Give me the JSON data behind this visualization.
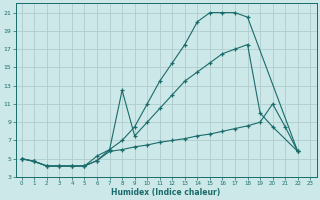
{
  "xlabel": "Humidex (Indice chaleur)",
  "bg_color": "#cde8e8",
  "grid_color": "#b8d8d8",
  "line_color": "#1a6b6b",
  "xlim": [
    -0.5,
    23.5
  ],
  "ylim": [
    3,
    22
  ],
  "xticks": [
    0,
    1,
    2,
    3,
    4,
    5,
    6,
    7,
    8,
    9,
    10,
    11,
    12,
    13,
    14,
    15,
    16,
    17,
    18,
    19,
    20,
    21,
    22,
    23
  ],
  "yticks": [
    3,
    5,
    7,
    9,
    11,
    13,
    15,
    17,
    19,
    21
  ],
  "line1_x": [
    0,
    1,
    2,
    3,
    4,
    5,
    6,
    7,
    8,
    9,
    10,
    11,
    12,
    13,
    14,
    15,
    16,
    17,
    18,
    22
  ],
  "line1_y": [
    5,
    4.7,
    4.2,
    4.2,
    4.2,
    4.2,
    4.8,
    6.0,
    7.0,
    8.5,
    11.0,
    13.5,
    15.5,
    17.5,
    20.0,
    21.0,
    21.0,
    21.0,
    20.5,
    5.8
  ],
  "line2_x": [
    0,
    1,
    2,
    3,
    4,
    5,
    6,
    7,
    8,
    9,
    10,
    11,
    12,
    13,
    14,
    15,
    16,
    17,
    18,
    19,
    20,
    22
  ],
  "line2_y": [
    5,
    4.7,
    4.2,
    4.2,
    4.2,
    4.2,
    5.3,
    6.0,
    12.5,
    7.5,
    9.0,
    10.5,
    12.0,
    13.5,
    14.5,
    15.5,
    16.5,
    17.0,
    17.5,
    10.0,
    8.5,
    5.8
  ],
  "line3_x": [
    0,
    1,
    2,
    3,
    4,
    5,
    6,
    7,
    8,
    9,
    10,
    11,
    12,
    13,
    14,
    15,
    16,
    17,
    18,
    19,
    20,
    21,
    22
  ],
  "line3_y": [
    5,
    4.7,
    4.2,
    4.2,
    4.2,
    4.2,
    4.8,
    5.8,
    6.0,
    6.3,
    6.5,
    6.8,
    7.0,
    7.2,
    7.5,
    7.7,
    8.0,
    8.3,
    8.6,
    9.0,
    11.0,
    8.5,
    5.8
  ]
}
